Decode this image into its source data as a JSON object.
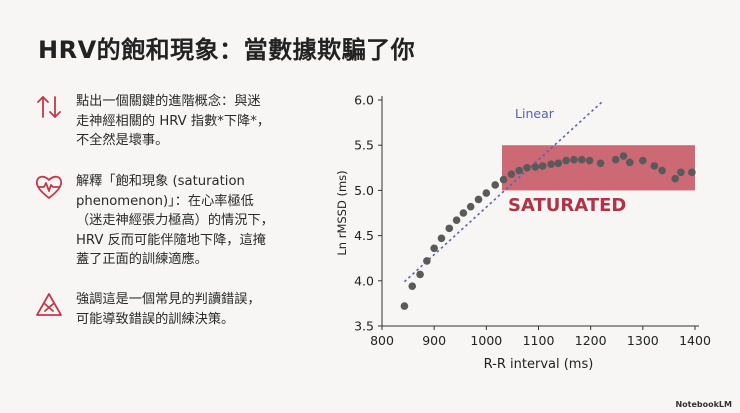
{
  "slide": {
    "title": "HRV的飽和現象：當數據欺騙了你",
    "bullets": [
      {
        "icon": "up-down-arrows-icon",
        "text": "點出一個關鍵的進階概念：與迷\n走神經相關的 HRV 指數*下降*，\n不全然是壞事。"
      },
      {
        "icon": "heart-pulse-icon",
        "text": "解釋「飽和現象 (saturation\nphenomenon)」：在心率極低\n（迷走神經張力極高）的情況下，\nHRV 反而可能伴隨地下降，這掩\n蓋了正面的訓練適應。"
      },
      {
        "icon": "warning-triangle-icon",
        "text": "強調這是一個常見的判讀錯誤，\n可能導致錯誤的訓練決策。"
      }
    ],
    "brand": "NotebookLM"
  },
  "colors": {
    "points": "#5a5a5a",
    "saturated_fill": "#c4505e",
    "saturated_text": "#b23347",
    "linear_line": "#5a63a8",
    "icon": "#c23a4a"
  },
  "chart_data": {
    "type": "scatter",
    "xlabel": "R-R interval (ms)",
    "ylabel": "Ln rMSSD (ms)",
    "xlim": [
      800,
      1400
    ],
    "ylim": [
      3.5,
      6.0
    ],
    "xticks": [
      800,
      900,
      1000,
      1100,
      1200,
      1300,
      1400
    ],
    "yticks": [
      3.5,
      4.0,
      4.5,
      5.0,
      5.5,
      6.0
    ],
    "x": [
      843,
      858,
      873,
      886,
      900,
      914,
      929,
      943,
      956,
      970,
      985,
      1000,
      1017,
      1033,
      1048,
      1063,
      1078,
      1094,
      1108,
      1124,
      1138,
      1153,
      1168,
      1183,
      1198,
      1219,
      1248,
      1263,
      1275,
      1300,
      1322,
      1337,
      1362,
      1373,
      1394
    ],
    "y": [
      3.72,
      3.94,
      4.07,
      4.22,
      4.36,
      4.47,
      4.58,
      4.67,
      4.75,
      4.82,
      4.9,
      4.97,
      5.06,
      5.12,
      5.18,
      5.22,
      5.25,
      5.26,
      5.27,
      5.29,
      5.3,
      5.33,
      5.34,
      5.34,
      5.33,
      5.3,
      5.34,
      5.38,
      5.31,
      5.33,
      5.27,
      5.22,
      5.13,
      5.2,
      5.2
    ],
    "linear_label": "Linear",
    "linear_line": {
      "x": [
        843,
        1222
      ],
      "y": [
        3.99,
        5.98
      ]
    },
    "saturated_label": "SATURATED",
    "saturated_region": {
      "x": [
        1030,
        1400
      ],
      "y": [
        5.0,
        5.5
      ]
    },
    "grid": false,
    "legend": "none"
  }
}
